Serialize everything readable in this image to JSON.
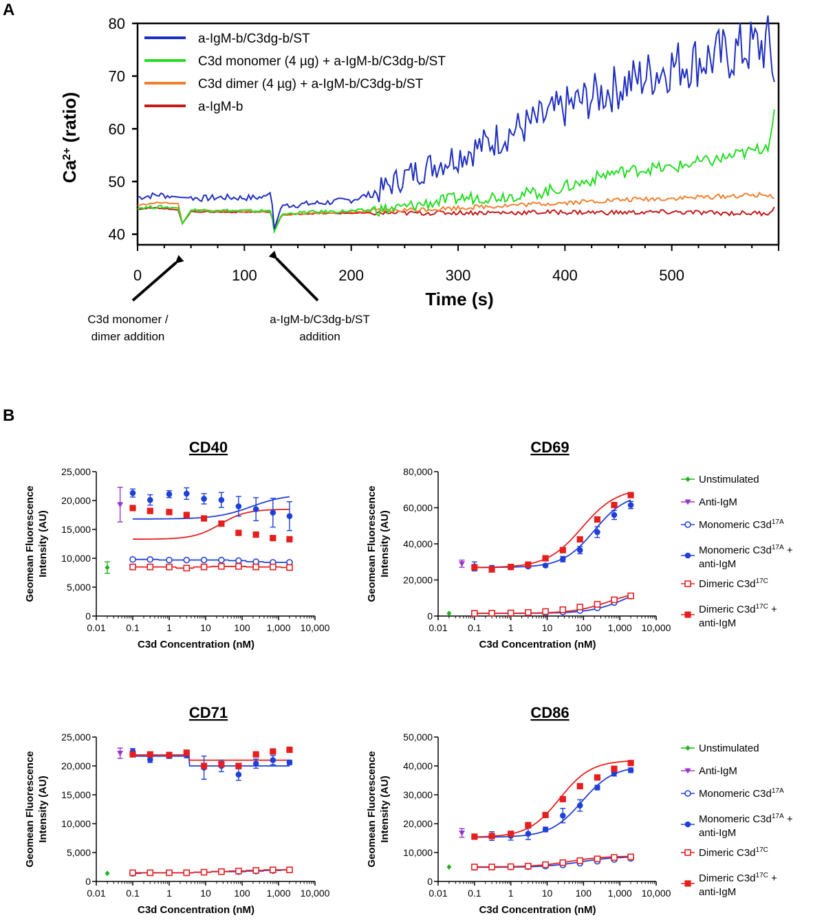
{
  "panel_labels": {
    "a": "A",
    "b": "B"
  },
  "annotations": {
    "monomer_line1": "C3d monomer /",
    "monomer_line2": "dimer addition",
    "antigen_line1": "a-IgM-b/C3dg-b/ST",
    "antigen_line2": "addition"
  },
  "legend_b": {
    "unstimulated": "Unstimulated",
    "anti_igm": "Anti-IgM",
    "mono_a": "Monomeric C3d",
    "mono_sup": "17A",
    "mono_anti_line1": "Monomeric C3d",
    "mono_anti_sup": "17A",
    "mono_anti_plus": " +",
    "mono_anti_line2": "anti-IgM",
    "dim_a": "Dimeric C3d",
    "dim_sup": "17C",
    "dim_anti_line1": "Dimeric C3d",
    "dim_anti_sup": "17C",
    "dim_anti_plus": " +",
    "dim_anti_line2": "anti-IgM"
  },
  "colors": {
    "blue_dark": "#1f2fbf",
    "green": "#22dd22",
    "orange": "#f08030",
    "red_dark": "#c41a1a",
    "unstim": "#19b419",
    "anti_igm": "#9933cc",
    "mono": "#1f3fd8",
    "dimer": "#e61e1e"
  },
  "chart_data": [
    {
      "id": "A",
      "type": "line",
      "ylabel_main": "Ca",
      "ylabel_sup": "2+",
      "ylabel_rest": " (ratio)",
      "xlabel": "Time (s)",
      "xlim": [
        0,
        600
      ],
      "ylim": [
        38,
        80
      ],
      "xticks": [
        "0",
        "100",
        "200",
        "300",
        "400",
        "500"
      ],
      "xtick_values": [
        0,
        100,
        200,
        300,
        400,
        500
      ],
      "yticks": [
        "40",
        "50",
        "60",
        "70",
        "80"
      ],
      "ytick_values": [
        40,
        50,
        60,
        70,
        80
      ],
      "series": [
        {
          "name": "a-IgM-b/C3dg-b/ST",
          "color": "#1f2fbf",
          "x": [
            0,
            20,
            40,
            60,
            80,
            100,
            118,
            125,
            128,
            135,
            150,
            175,
            200,
            225,
            250,
            275,
            300,
            325,
            350,
            375,
            400,
            425,
            450,
            475,
            500,
            525,
            550,
            575,
            590,
            597
          ],
          "y": [
            47,
            47.5,
            47,
            46.8,
            47,
            46.9,
            47,
            48,
            41,
            45.5,
            45.6,
            46,
            46.5,
            48,
            51,
            53,
            55,
            57,
            59.5,
            61.5,
            64,
            66,
            68,
            70,
            72,
            73,
            74,
            75.5,
            76,
            70
          ]
        },
        {
          "name": "C3d monomer (4 µg) + a-IgM-b/C3dg-b/ST",
          "color": "#22dd22",
          "x": [
            0,
            20,
            38,
            42,
            50,
            80,
            110,
            125,
            128,
            135,
            160,
            200,
            240,
            260,
            300,
            340,
            380,
            400,
            420,
            440,
            460,
            480,
            500,
            520,
            540,
            560,
            580,
            590,
            596
          ],
          "y": [
            45,
            45.2,
            45,
            42,
            44.6,
            44.5,
            44.4,
            44.5,
            40.5,
            43.8,
            44.2,
            44.4,
            44.8,
            45.5,
            46.8,
            47.2,
            48,
            49,
            50,
            51.5,
            52,
            52.5,
            52.5,
            53.5,
            54,
            55,
            56,
            57,
            63
          ]
        },
        {
          "name": "C3d dimer (4 µg) + a-IgM-b/C3dg-b/ST",
          "color": "#f08030",
          "x": [
            0,
            20,
            38,
            42,
            50,
            80,
            110,
            125,
            128,
            135,
            160,
            200,
            250,
            300,
            350,
            400,
            450,
            500,
            550,
            590,
            596
          ],
          "y": [
            45.5,
            46,
            45.8,
            42,
            44.6,
            44.4,
            44.3,
            44.4,
            40.5,
            43.6,
            44,
            44.2,
            44.6,
            45,
            45.5,
            46,
            46.5,
            46.8,
            47.2,
            47.5,
            47
          ]
        },
        {
          "name": "a-IgM-b",
          "color": "#c41a1a",
          "x": [
            0,
            20,
            38,
            42,
            50,
            80,
            110,
            125,
            128,
            135,
            160,
            200,
            250,
            300,
            350,
            400,
            450,
            500,
            550,
            590,
            596
          ],
          "y": [
            44.8,
            45,
            44.6,
            42,
            44.3,
            44.2,
            44.2,
            44.2,
            41,
            43.7,
            43.9,
            44,
            44,
            44.1,
            44.1,
            44.2,
            44.1,
            44.2,
            44,
            44,
            45
          ]
        }
      ]
    },
    {
      "id": "CD40",
      "type": "scatter",
      "title": "CD40",
      "xscale": "log",
      "xlabel": "C3d Concentration (nM)",
      "ylabel_line1": "Geomean Fluorescence",
      "ylabel_line2": "Intensity (AU)",
      "xticks": [
        "0.01",
        "0.1",
        "1",
        "10",
        "100",
        "1,000",
        "10,000"
      ],
      "xtick_values": [
        0.01,
        0.1,
        1,
        10,
        100,
        1000,
        10000
      ],
      "yticks": [
        "0",
        "5,000",
        "10,000",
        "15,000",
        "20,000",
        "25,000"
      ],
      "ytick_values": [
        0,
        5000,
        10000,
        15000,
        20000,
        25000
      ],
      "ylim": [
        0,
        25000
      ],
      "unstimulated": {
        "x": 0.02,
        "y": 8400,
        "err": 1000
      },
      "anti_igm": {
        "x": 0.045,
        "y": 19300,
        "err": 3000
      },
      "concentrations": [
        0.1,
        0.3,
        1,
        3,
        9,
        27,
        80,
        240,
        700,
        2000
      ],
      "mono": [
        9800,
        9800,
        9700,
        9700,
        9700,
        9700,
        9600,
        9400,
        9300,
        9300
      ],
      "mono_anti": [
        21300,
        20100,
        21100,
        21200,
        20300,
        20100,
        19000,
        18500,
        17900,
        17300
      ],
      "mono_anti_err": [
        700,
        900,
        600,
        1000,
        900,
        1300,
        1700,
        2000,
        2500,
        2500
      ],
      "dimer": [
        8500,
        8500,
        8500,
        8300,
        8500,
        8600,
        8600,
        8500,
        8500,
        8400
      ],
      "dimer_anti": [
        18700,
        18200,
        18000,
        17500,
        16900,
        16000,
        14400,
        14100,
        13500,
        13300
      ],
      "mono_anti_fit": {
        "bottom": 16800,
        "top": 21100,
        "ec50": 180,
        "hill": 0.9
      },
      "dimer_anti_fit": {
        "bottom": 13300,
        "top": 18500,
        "ec50": 25,
        "hill": 1.2
      }
    },
    {
      "id": "CD69",
      "type": "scatter",
      "title": "CD69",
      "xscale": "log",
      "xlabel": "C3d Concentration (nM)",
      "ylabel_line1": "Geomean Fluorescence",
      "ylabel_line2": "Intensity (AU)",
      "xticks": [
        "0.01",
        "0.1",
        "1",
        "10",
        "100",
        "1,000",
        "10,000"
      ],
      "xtick_values": [
        0.01,
        0.1,
        1,
        10,
        100,
        1000,
        10000
      ],
      "yticks": [
        "0",
        "20,000",
        "40,000",
        "60,000",
        "80,000"
      ],
      "ytick_values": [
        0,
        20000,
        40000,
        60000,
        80000
      ],
      "ylim": [
        0,
        80000
      ],
      "unstimulated": {
        "x": 0.02,
        "y": 1500,
        "err": 0
      },
      "anti_igm": {
        "x": 0.045,
        "y": 29000,
        "err": 2000
      },
      "concentrations": [
        0.1,
        0.3,
        1,
        3,
        9,
        27,
        80,
        240,
        700,
        2000
      ],
      "mono": [
        1500,
        1500,
        1500,
        1600,
        1800,
        2300,
        3000,
        4500,
        7500,
        11000
      ],
      "mono_anti": [
        27500,
        26500,
        27000,
        27500,
        28000,
        31500,
        36500,
        46500,
        56000,
        61500
      ],
      "mono_anti_err": [
        2500,
        1500,
        1000,
        800,
        800,
        1500,
        2000,
        3000,
        2500,
        2000
      ],
      "dimer": [
        1500,
        1600,
        1700,
        2000,
        2500,
        3500,
        5000,
        6500,
        9000,
        11200
      ],
      "dimer_anti": [
        27000,
        25800,
        27200,
        28500,
        32000,
        36500,
        42500,
        53500,
        61500,
        67000
      ],
      "mono_anti_fit": {
        "bottom": 26900,
        "top": 68000,
        "ec50": 200,
        "hill": 1.0
      },
      "dimer_anti_fit": {
        "bottom": 26800,
        "top": 71000,
        "ec50": 90,
        "hill": 0.9
      },
      "mono_fit": {
        "bottom": 1500,
        "top": 18000,
        "ec50": 1500,
        "hill": 0.9
      },
      "dimer_fit": {
        "bottom": 1500,
        "top": 14500,
        "ec50": 500,
        "hill": 0.9
      }
    },
    {
      "id": "CD71",
      "type": "scatter",
      "title": "CD71",
      "xscale": "log",
      "xlabel": "C3d Concentration (nM)",
      "ylabel_line1": "Geomean Fluorescence",
      "ylabel_line2": "Intensity (AU)",
      "xticks": [
        "0.01",
        "0.1",
        "1",
        "10",
        "100",
        "1,000",
        "10,000"
      ],
      "xtick_values": [
        0.01,
        0.1,
        1,
        10,
        100,
        1000,
        10000
      ],
      "yticks": [
        "0",
        "5,000",
        "10,000",
        "15,000",
        "20,000",
        "25,000"
      ],
      "ytick_values": [
        0,
        5000,
        10000,
        15000,
        20000,
        25000
      ],
      "ylim": [
        0,
        25000
      ],
      "unstimulated": {
        "x": 0.02,
        "y": 1400,
        "err": 0
      },
      "anti_igm": {
        "x": 0.045,
        "y": 22200,
        "err": 900
      },
      "concentrations": [
        0.1,
        0.3,
        1,
        3,
        9,
        27,
        80,
        240,
        700,
        2000
      ],
      "mono": [
        1400,
        1500,
        1500,
        1500,
        1600,
        1700,
        1700,
        1800,
        1900,
        2000
      ],
      "mono_anti": [
        22500,
        21100,
        21700,
        21900,
        19700,
        20000,
        18500,
        20400,
        21000,
        20600
      ],
      "mono_anti_err": [
        500,
        500,
        400,
        500,
        2000,
        1000,
        1000,
        800,
        800,
        400
      ],
      "dimer": [
        1500,
        1500,
        1500,
        1500,
        1600,
        1700,
        1800,
        1900,
        2000,
        2000
      ],
      "dimer_anti": [
        22000,
        22000,
        21900,
        22300,
        20000,
        20300,
        20000,
        22000,
        22500,
        22800
      ],
      "mono_anti_fit": {
        "step_low": 21700,
        "step_high": 20000,
        "step_at": 3.5
      },
      "dimer_anti_fit": {
        "step_low": 21900,
        "step_high": 21000,
        "step_at": 3.5
      }
    },
    {
      "id": "CD86",
      "type": "scatter",
      "title": "CD86",
      "xscale": "log",
      "xlabel": "C3d Concentration (nM)",
      "ylabel_line1": "Geomean Fluorescence",
      "ylabel_line2": "Intensity (AU)",
      "xticks": [
        "0.01",
        "0.1",
        "1",
        "10",
        "100",
        "1,000",
        "10,000"
      ],
      "xtick_values": [
        0.01,
        0.1,
        1,
        10,
        100,
        1000,
        10000
      ],
      "yticks": [
        "0",
        "10,000",
        "20,000",
        "30,000",
        "40,000",
        "50,000"
      ],
      "ytick_values": [
        0,
        10000,
        20000,
        30000,
        40000,
        50000
      ],
      "ylim": [
        0,
        50000
      ],
      "unstimulated": {
        "x": 0.02,
        "y": 5000,
        "err": 0
      },
      "anti_igm": {
        "x": 0.045,
        "y": 16800,
        "err": 1500
      },
      "concentrations": [
        0.1,
        0.3,
        1,
        3,
        9,
        27,
        80,
        240,
        700,
        2000
      ],
      "mono": [
        4900,
        5000,
        5000,
        5100,
        5300,
        5700,
        6300,
        7000,
        7600,
        8000
      ],
      "mono_anti": [
        15500,
        15700,
        15800,
        16500,
        18000,
        22800,
        26300,
        32500,
        37500,
        38500
      ],
      "mono_anti_err": [
        500,
        1500,
        1500,
        2000,
        800,
        2500,
        2000,
        800,
        1000,
        800
      ],
      "dimer": [
        5000,
        5000,
        5100,
        5300,
        5800,
        6500,
        7200,
        7800,
        8300,
        8500
      ],
      "dimer_anti": [
        15500,
        15700,
        16500,
        19500,
        23000,
        28500,
        33000,
        36000,
        39000,
        41000
      ],
      "mono_anti_fit": {
        "bottom": 15300,
        "top": 40000,
        "ec50": 90,
        "hill": 1.0
      },
      "dimer_anti_fit": {
        "bottom": 15300,
        "top": 42000,
        "ec50": 22,
        "hill": 1.0
      },
      "mono_fit": {
        "bottom": 4900,
        "top": 8600,
        "ec50": 80,
        "hill": 0.9
      },
      "dimer_fit": {
        "bottom": 5000,
        "top": 8800,
        "ec50": 40,
        "hill": 0.9
      }
    }
  ]
}
